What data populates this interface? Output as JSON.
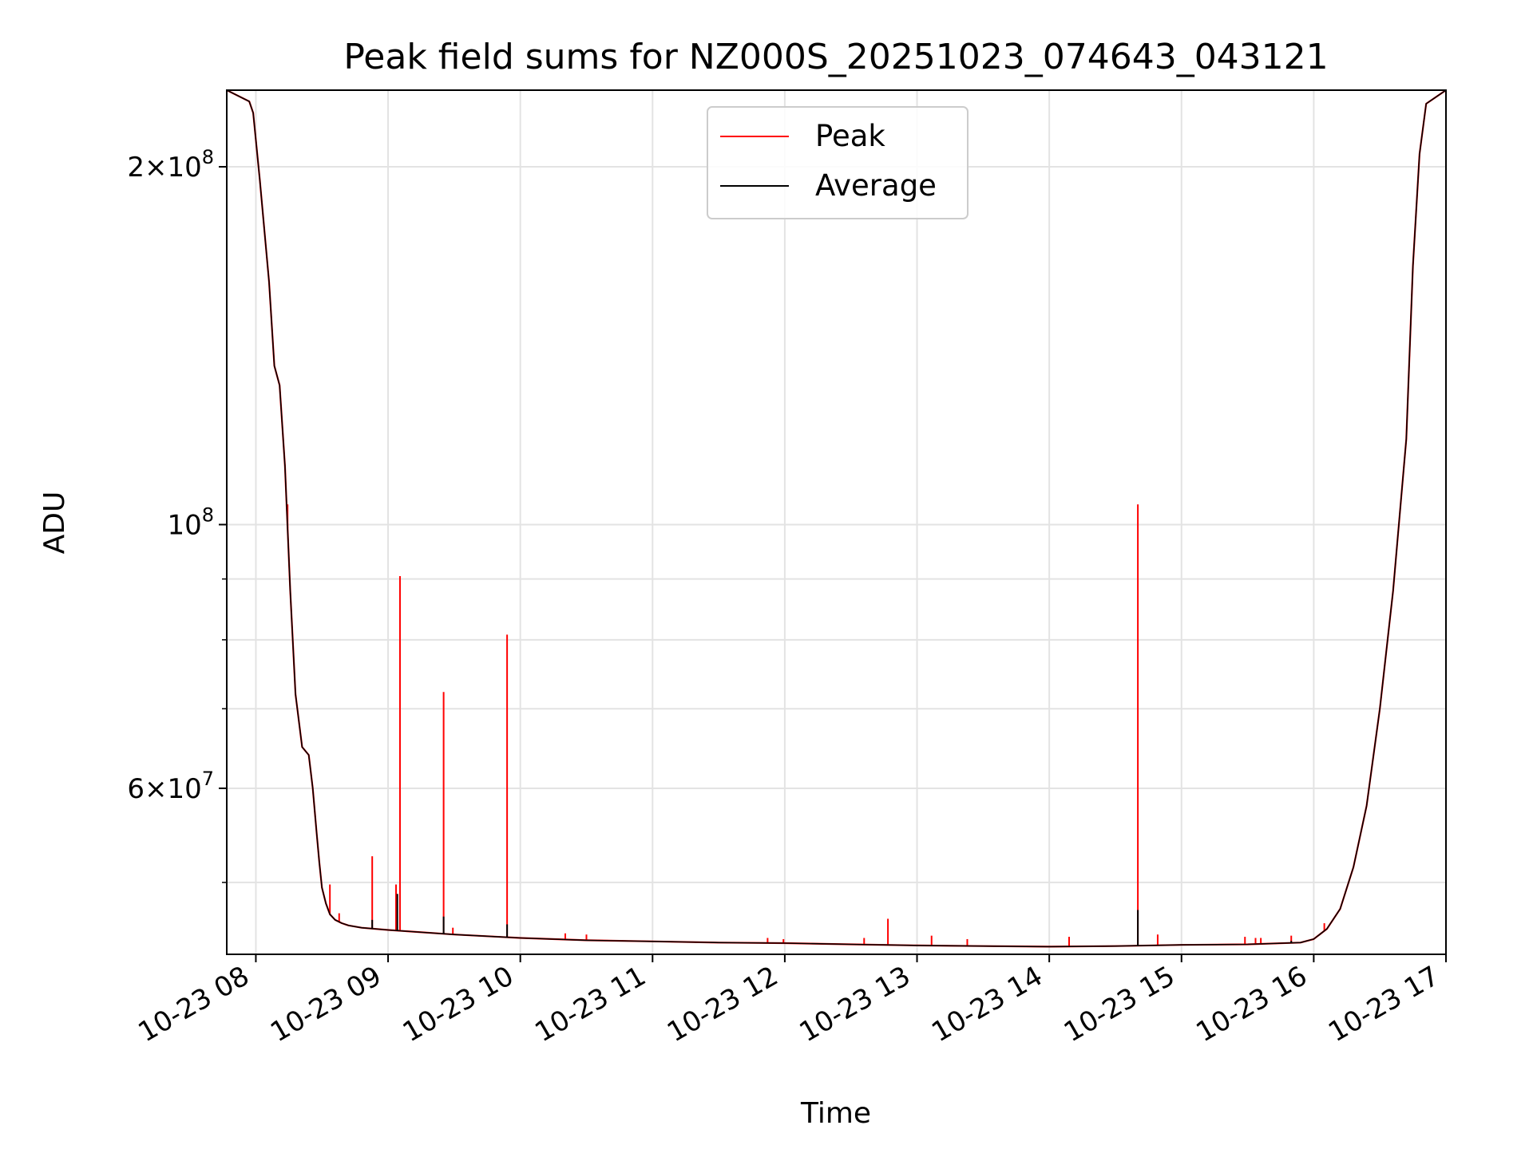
{
  "chart_data": {
    "type": "line",
    "title": "Peak field sums for NZ000S_20251023_074643_043121",
    "xlabel": "Time",
    "ylabel": "ADU",
    "yscale": "log",
    "xlim_hours": [
      7.78,
      17.0
    ],
    "ylim": [
      43500000,
      232000000
    ],
    "grid": true,
    "legend_position": "upper center",
    "x_ticks": [
      {
        "value": 8,
        "label": "10-23 08"
      },
      {
        "value": 9,
        "label": "10-23 09"
      },
      {
        "value": 10,
        "label": "10-23 10"
      },
      {
        "value": 11,
        "label": "10-23 11"
      },
      {
        "value": 12,
        "label": "10-23 12"
      },
      {
        "value": 13,
        "label": "10-23 13"
      },
      {
        "value": 14,
        "label": "10-23 14"
      },
      {
        "value": 15,
        "label": "10-23 15"
      },
      {
        "value": 16,
        "label": "10-23 16"
      },
      {
        "value": 17,
        "label": "10-23 17"
      }
    ],
    "y_major_ticks": [
      {
        "value": 60000000,
        "base": "6",
        "exp": "7"
      },
      {
        "value": 100000000,
        "base": "",
        "exp": "8"
      },
      {
        "value": 200000000,
        "base": "2",
        "exp": "8"
      }
    ],
    "y_minor_grid": [
      50000000,
      70000000,
      80000000,
      90000000
    ],
    "legend": [
      {
        "name": "Peak",
        "color": "#ff0000"
      },
      {
        "name": "Average",
        "color": "#000000"
      }
    ],
    "average_curve": {
      "x": [
        7.78,
        7.95,
        7.98,
        8.03,
        8.1,
        8.14,
        8.18,
        8.22,
        8.26,
        8.3,
        8.35,
        8.4,
        8.43,
        8.46,
        8.48,
        8.5,
        8.53,
        8.56,
        8.6,
        8.65,
        8.7,
        8.8,
        9.0,
        9.5,
        10.0,
        10.5,
        11.0,
        11.5,
        12.0,
        12.5,
        13.0,
        13.5,
        14.0,
        14.5,
        15.0,
        15.5,
        15.9,
        16.0,
        16.1,
        16.2,
        16.3,
        16.4,
        16.5,
        16.6,
        16.7,
        16.75,
        16.8,
        16.85,
        17.0
      ],
      "y": [
        232000000,
        227000000,
        222000000,
        195000000,
        160000000,
        136000000,
        131000000,
        112000000,
        88000000,
        72000000,
        65000000,
        64000000,
        60000000,
        55000000,
        52000000,
        49500000,
        48000000,
        47000000,
        46500000,
        46200000,
        46000000,
        45800000,
        45600000,
        45200000,
        44900000,
        44700000,
        44600000,
        44500000,
        44450000,
        44350000,
        44250000,
        44200000,
        44150000,
        44200000,
        44300000,
        44350000,
        44500000,
        44800000,
        45700000,
        47500000,
        51500000,
        58000000,
        70000000,
        88000000,
        118000000,
        165000000,
        205000000,
        226000000,
        232000000
      ]
    },
    "peak_spikes": [
      {
        "x": 8.24,
        "y": 104000000
      },
      {
        "x": 8.56,
        "y": 49800000
      },
      {
        "x": 8.63,
        "y": 47100000
      },
      {
        "x": 8.88,
        "y": 52600000
      },
      {
        "x": 9.06,
        "y": 49800000
      },
      {
        "x": 9.09,
        "y": 90500000
      },
      {
        "x": 9.42,
        "y": 72300000
      },
      {
        "x": 9.49,
        "y": 45800000
      },
      {
        "x": 9.9,
        "y": 80800000
      },
      {
        "x": 10.34,
        "y": 45300000
      },
      {
        "x": 10.5,
        "y": 45200000
      },
      {
        "x": 11.87,
        "y": 44900000
      },
      {
        "x": 11.99,
        "y": 44800000
      },
      {
        "x": 12.6,
        "y": 44900000
      },
      {
        "x": 12.78,
        "y": 46600000
      },
      {
        "x": 13.11,
        "y": 45100000
      },
      {
        "x": 13.38,
        "y": 44800000
      },
      {
        "x": 14.15,
        "y": 45000000
      },
      {
        "x": 14.67,
        "y": 104000000
      },
      {
        "x": 14.82,
        "y": 45200000
      },
      {
        "x": 15.48,
        "y": 45000000
      },
      {
        "x": 15.56,
        "y": 44900000
      },
      {
        "x": 15.6,
        "y": 44900000
      },
      {
        "x": 15.83,
        "y": 45100000
      },
      {
        "x": 16.08,
        "y": 46200000
      }
    ],
    "average_spikes": [
      {
        "x": 8.88,
        "y": 46500000
      },
      {
        "x": 9.07,
        "y": 48900000
      },
      {
        "x": 9.42,
        "y": 46800000
      },
      {
        "x": 9.9,
        "y": 46100000
      },
      {
        "x": 14.67,
        "y": 47400000
      },
      {
        "x": 15.83,
        "y": 44650000
      }
    ]
  }
}
